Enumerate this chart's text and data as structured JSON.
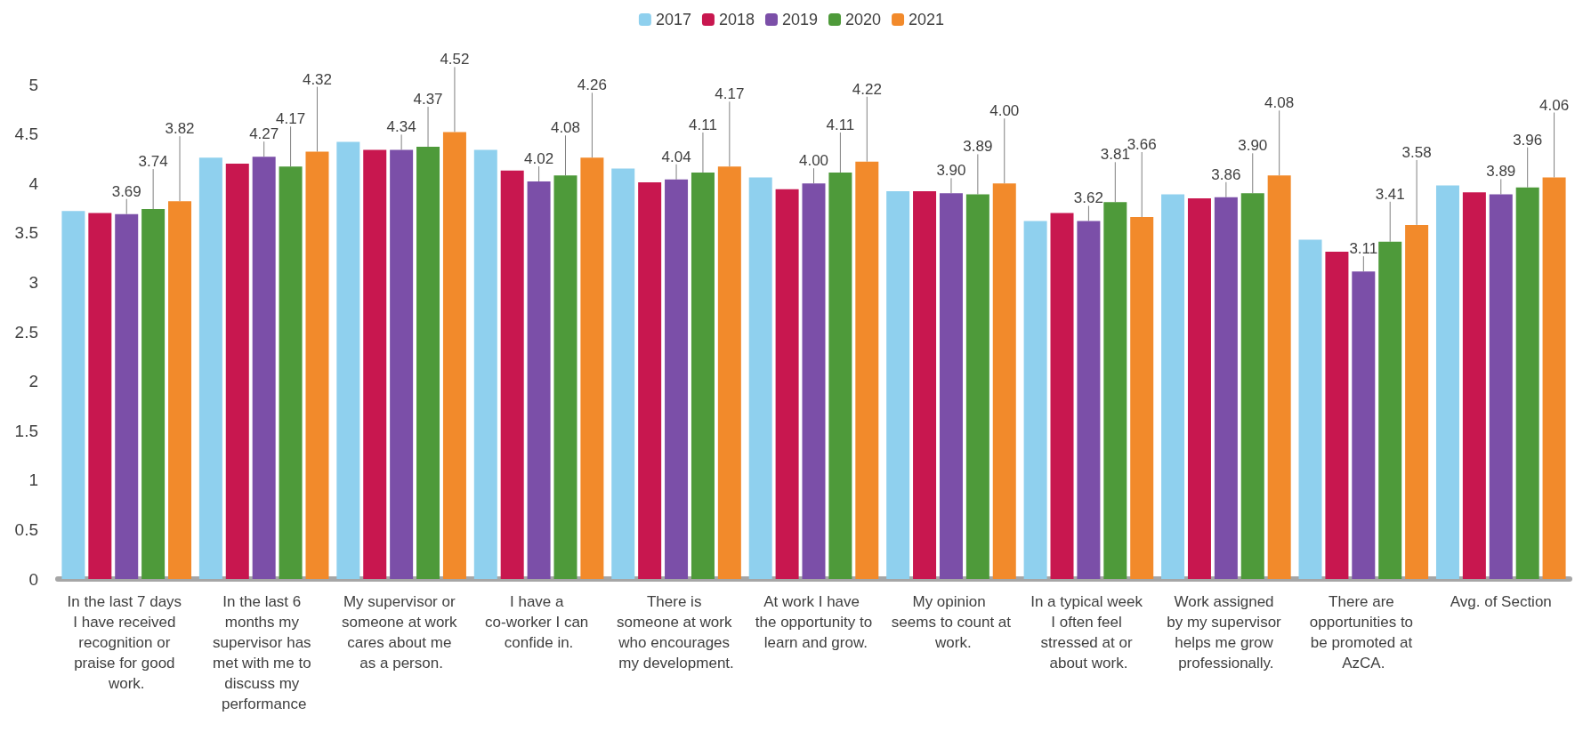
{
  "chart_data": {
    "type": "bar",
    "categories": [
      "In the last 7 days I have received recognition or praise for good work.",
      "In the last 6 months my supervisor has met with me to discuss my performance",
      "My supervisor or someone at work cares about me as a person.",
      "I have a co-worker I can confide in.",
      "There is someone at work who encourages my development.",
      "At work I have the opportunity to learn and grow.",
      "My opinion seems to count at work.",
      "In a typical week I often feel stressed at or about work.",
      "Work assigned by my supervisor helps me grow professionally.",
      "There are opportunities to be promoted at AzCA.",
      "Avg. of Section"
    ],
    "series": [
      {
        "name": "2017",
        "color": "#8fd0ee",
        "values": [
          3.72,
          4.26,
          4.42,
          4.34,
          4.15,
          4.06,
          3.92,
          3.62,
          3.89,
          3.43,
          3.98
        ]
      },
      {
        "name": "2018",
        "color": "#c8174f",
        "values": [
          3.7,
          4.2,
          4.34,
          4.13,
          4.01,
          3.94,
          3.92,
          3.7,
          3.85,
          3.31,
          3.91
        ]
      },
      {
        "name": "2019",
        "color": "#7b4fa8",
        "values": [
          3.69,
          4.27,
          4.34,
          4.02,
          4.04,
          4.0,
          3.9,
          3.62,
          3.86,
          3.11,
          3.89
        ],
        "value_labels": [
          "3.69",
          "4.27",
          "4.34",
          "4.02",
          "4.04",
          "4.00",
          "3.90",
          "3.62",
          "3.86",
          "3.11",
          "3.89"
        ]
      },
      {
        "name": "2020",
        "color": "#4e9a3a",
        "values": [
          3.74,
          4.17,
          4.37,
          4.08,
          4.11,
          4.11,
          3.89,
          3.81,
          3.9,
          3.41,
          3.96
        ],
        "value_labels": [
          "3.74",
          "4.17",
          "4.37",
          "4.08",
          "4.11",
          "4.11",
          "3.89",
          "3.81",
          "3.90",
          "3.41",
          "3.96"
        ]
      },
      {
        "name": "2021",
        "color": "#f28a2b",
        "values": [
          3.82,
          4.32,
          4.52,
          4.26,
          4.17,
          4.22,
          4.0,
          3.66,
          4.08,
          3.58,
          4.06
        ],
        "value_labels": [
          "3.82",
          "4.32",
          "4.52",
          "4.26",
          "4.17",
          "4.22",
          "4.00",
          "3.66",
          "4.08",
          "3.58",
          "4.06"
        ]
      }
    ],
    "ylim": [
      0,
      5
    ],
    "yticks": [
      0,
      0.5,
      1,
      1.5,
      2,
      2.5,
      3,
      3.5,
      4,
      4.5,
      5
    ],
    "grid": false,
    "legend": "top"
  }
}
